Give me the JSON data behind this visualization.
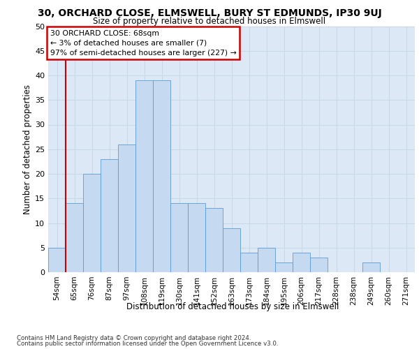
{
  "title_line1": "30, ORCHARD CLOSE, ELMSWELL, BURY ST EDMUNDS, IP30 9UJ",
  "title_line2": "Size of property relative to detached houses in Elmswell",
  "xlabel": "Distribution of detached houses by size in Elmswell",
  "ylabel": "Number of detached properties",
  "bin_labels": [
    "54sqm",
    "65sqm",
    "76sqm",
    "87sqm",
    "97sqm",
    "108sqm",
    "119sqm",
    "130sqm",
    "141sqm",
    "152sqm",
    "163sqm",
    "173sqm",
    "184sqm",
    "195sqm",
    "206sqm",
    "217sqm",
    "228sqm",
    "238sqm",
    "249sqm",
    "260sqm",
    "271sqm"
  ],
  "bar_heights": [
    5,
    14,
    20,
    23,
    26,
    39,
    39,
    14,
    14,
    13,
    9,
    4,
    5,
    2,
    4,
    3,
    0,
    0,
    2,
    0,
    0
  ],
  "bar_color": "#c5d9f1",
  "bar_edge_color": "#5b9bd5",
  "annotation_line1": "30 ORCHARD CLOSE: 68sqm",
  "annotation_line2": "← 3% of detached houses are smaller (7)",
  "annotation_line3": "97% of semi-detached houses are larger (227) →",
  "vline_color": "#cc0000",
  "annotation_box_color": "#cc0000",
  "ylim": [
    0,
    50
  ],
  "yticks": [
    0,
    5,
    10,
    15,
    20,
    25,
    30,
    35,
    40,
    45,
    50
  ],
  "grid_color": "#c8d8e8",
  "bg_color": "#dce8f5",
  "footer_line1": "Contains HM Land Registry data © Crown copyright and database right 2024.",
  "footer_line2": "Contains public sector information licensed under the Open Government Licence v3.0."
}
